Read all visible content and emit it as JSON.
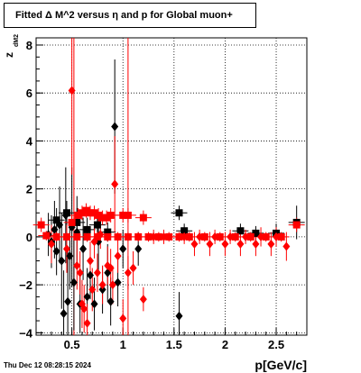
{
  "chart_data": {
    "type": "scatter",
    "title": "Fitted Δ M^2 versus η and p for Global muon+",
    "xlabel": "p[GeV/c]",
    "ylabel": "z",
    "ylabel_subscript": "dM2",
    "xlim": [
      0.15,
      2.8
    ],
    "ylim": [
      -4.1,
      8.3
    ],
    "x_ticks": [
      0.5,
      1,
      1.5,
      2,
      2.5
    ],
    "x_tick_labels": [
      "0.5",
      "1",
      "1.5",
      "2",
      "2.5"
    ],
    "y_ticks": [
      -4,
      -2,
      0,
      2,
      4,
      6,
      8
    ],
    "y_tick_labels": [
      "−4",
      "−2",
      "0",
      "2",
      "4",
      "6",
      "8"
    ],
    "grid": true,
    "timestamp": "Thu Dec 12 08:28:15 2024",
    "series": [
      {
        "color": "#000000",
        "points": [
          {
            "m": "d",
            "x": 0.27,
            "y": 0.1,
            "e": 0.9
          },
          {
            "m": "d",
            "x": 0.3,
            "y": -0.2,
            "e": 1.1
          },
          {
            "m": "d",
            "x": 0.33,
            "y": 0.3,
            "e": 1.2
          },
          {
            "m": "d",
            "x": 0.35,
            "y": -0.6,
            "e": 1.0
          },
          {
            "m": "d",
            "x": 0.38,
            "y": 0.5,
            "e": 1.6
          },
          {
            "m": "d",
            "x": 0.4,
            "y": -1.0,
            "e": 2.0
          },
          {
            "m": "d",
            "x": 0.42,
            "y": -3.2,
            "e": 1.8
          },
          {
            "m": "d",
            "x": 0.44,
            "y": 0.9,
            "e": 2.0
          },
          {
            "m": "d",
            "x": 0.46,
            "y": -2.7,
            "e": 2.2
          },
          {
            "m": "d",
            "x": 0.48,
            "y": -0.8,
            "e": 1.4
          },
          {
            "m": "d",
            "x": 0.5,
            "y": 0.4,
            "e": 2.5
          },
          {
            "m": "d",
            "x": 0.52,
            "y": -1.9,
            "e": 2.0
          },
          {
            "m": "d",
            "x": 0.55,
            "y": 0.2,
            "e": 1.5
          },
          {
            "m": "d",
            "x": 0.58,
            "y": -2.8,
            "e": 1.2
          },
          {
            "m": "d",
            "x": 0.61,
            "y": -0.5,
            "e": 1.3
          },
          {
            "m": "d",
            "x": 0.65,
            "y": -2.5,
            "e": 1.2
          },
          {
            "m": "d",
            "x": 0.68,
            "y": -1.6,
            "e": 1.0
          },
          {
            "m": "d",
            "x": 0.72,
            "y": -2.8,
            "e": 1.1
          },
          {
            "m": "d",
            "x": 0.76,
            "y": -0.2,
            "e": 1.2
          },
          {
            "m": "d",
            "x": 0.8,
            "y": -2.2,
            "e": 1.0
          },
          {
            "m": "d",
            "x": 0.85,
            "y": -1.5,
            "e": 1.2
          },
          {
            "m": "d",
            "x": 0.88,
            "y": -2.7,
            "e": 1.0
          },
          {
            "m": "d",
            "x": 0.92,
            "y": 4.6,
            "e": 2.8
          },
          {
            "m": "d",
            "x": 0.95,
            "y": -1.9,
            "e": 1.0
          },
          {
            "m": "d",
            "x": 1.0,
            "y": -0.5,
            "e": 0.8
          },
          {
            "m": "d",
            "x": 1.15,
            "y": -0.5,
            "e": 0.7
          },
          {
            "m": "d",
            "x": 1.55,
            "y": -3.3,
            "e": 1.0
          },
          {
            "m": "s",
            "x": 1.55,
            "y": 1.0,
            "e": 0.3
          },
          {
            "m": "s",
            "x": 1.6,
            "y": 0.25,
            "e": 0.3
          },
          {
            "m": "s",
            "x": 2.15,
            "y": 0.25,
            "e": 0.3
          },
          {
            "m": "s",
            "x": 2.3,
            "y": 0.15,
            "e": 0.3
          },
          {
            "m": "s",
            "x": 2.5,
            "y": 0.15,
            "e": 0.4
          },
          {
            "m": "s",
            "x": 2.7,
            "y": 0.6,
            "e": 0.7
          },
          {
            "m": "s",
            "x": 0.35,
            "y": 0.7,
            "e": 0.5
          },
          {
            "m": "s",
            "x": 0.45,
            "y": 1.0,
            "e": 0.5
          },
          {
            "m": "s",
            "x": 0.55,
            "y": 0.6,
            "e": 0.6
          },
          {
            "m": "s",
            "x": 0.65,
            "y": 0.3,
            "e": 0.5
          },
          {
            "m": "s",
            "x": 0.75,
            "y": 0.5,
            "e": 0.5
          },
          {
            "m": "s",
            "x": 0.85,
            "y": 0.2,
            "e": 0.4
          }
        ]
      },
      {
        "color": "#ff0000",
        "points": [
          {
            "m": "d",
            "x": 0.5,
            "y": 6.1,
            "e": 3.5
          },
          {
            "m": "d",
            "x": 0.92,
            "y": 2.2,
            "e": 2.0
          },
          {
            "m": "d",
            "x": 0.3,
            "y": -0.3,
            "e": 0.8
          },
          {
            "m": "d",
            "x": 0.45,
            "y": -0.5,
            "e": 1.0
          },
          {
            "m": "d",
            "x": 0.55,
            "y": -1.2,
            "e": 1.0
          },
          {
            "m": "d",
            "x": 0.58,
            "y": -1.5,
            "e": 0.9
          },
          {
            "m": "d",
            "x": 0.6,
            "y": -2.8,
            "e": 1.0
          },
          {
            "m": "d",
            "x": 0.62,
            "y": -3.0,
            "e": 1.0
          },
          {
            "m": "d",
            "x": 0.65,
            "y": -3.6,
            "e": 0.8
          },
          {
            "m": "d",
            "x": 0.68,
            "y": -1.0,
            "e": 0.8
          },
          {
            "m": "d",
            "x": 0.7,
            "y": -2.2,
            "e": 0.9
          },
          {
            "m": "d",
            "x": 0.72,
            "y": -0.2,
            "e": 0.7
          },
          {
            "m": "d",
            "x": 0.75,
            "y": -1.5,
            "e": 0.8
          },
          {
            "m": "d",
            "x": 0.78,
            "y": 0.1,
            "e": 0.6
          },
          {
            "m": "d",
            "x": 0.8,
            "y": -2.0,
            "e": 0.8
          },
          {
            "m": "d",
            "x": 0.85,
            "y": -1.2,
            "e": 0.8
          },
          {
            "m": "d",
            "x": 0.88,
            "y": -1.3,
            "e": 0.8
          },
          {
            "m": "d",
            "x": 0.9,
            "y": -2.0,
            "e": 0.8
          },
          {
            "m": "d",
            "x": 0.95,
            "y": -0.8,
            "e": 0.7
          },
          {
            "m": "d",
            "x": 1.0,
            "y": -3.4,
            "e": 0.8
          },
          {
            "m": "d",
            "x": 1.05,
            "y": -1.5,
            "e": 0.7
          },
          {
            "m": "d",
            "x": 1.1,
            "y": -1.3,
            "e": 0.7
          },
          {
            "m": "d",
            "x": 1.2,
            "y": -2.6,
            "e": 0.5
          },
          {
            "m": "d",
            "x": 1.3,
            "y": 0.0,
            "e": 0.3
          },
          {
            "m": "d",
            "x": 1.4,
            "y": 0.0,
            "e": 0.3
          },
          {
            "m": "d",
            "x": 1.6,
            "y": 0.0,
            "e": 0.3
          },
          {
            "m": "d",
            "x": 1.75,
            "y": 0.0,
            "e": 0.3
          },
          {
            "m": "d",
            "x": 1.9,
            "y": 0.0,
            "e": 0.3
          },
          {
            "m": "d",
            "x": 2.05,
            "y": 0.0,
            "e": 0.3
          },
          {
            "m": "d",
            "x": 2.2,
            "y": 0.0,
            "e": 0.3
          },
          {
            "m": "d",
            "x": 2.35,
            "y": 0.0,
            "e": 0.4
          },
          {
            "m": "d",
            "x": 2.5,
            "y": 0.0,
            "e": 0.4
          },
          {
            "m": "d",
            "x": 1.7,
            "y": -0.3,
            "e": 0.5
          },
          {
            "m": "d",
            "x": 1.85,
            "y": -0.3,
            "e": 0.5
          },
          {
            "m": "d",
            "x": 2.0,
            "y": -0.3,
            "e": 0.5
          },
          {
            "m": "d",
            "x": 2.15,
            "y": -0.3,
            "e": 0.5
          },
          {
            "m": "d",
            "x": 2.3,
            "y": -0.3,
            "e": 0.5
          },
          {
            "m": "d",
            "x": 2.45,
            "y": -0.3,
            "e": 0.5
          },
          {
            "m": "d",
            "x": 2.6,
            "y": -0.4,
            "e": 0.6
          },
          {
            "m": "s",
            "x": 0.2,
            "y": 0.5,
            "e": 0.3
          },
          {
            "m": "s",
            "x": 0.5,
            "y": 0.6,
            "e": 0.3
          },
          {
            "m": "s",
            "x": 0.56,
            "y": 0.9,
            "e": 0.3
          },
          {
            "m": "s",
            "x": 0.6,
            "y": 1.0,
            "e": 0.3
          },
          {
            "m": "s",
            "x": 0.64,
            "y": 1.1,
            "e": 0.3
          },
          {
            "m": "s",
            "x": 0.68,
            "y": 1.0,
            "e": 0.3
          },
          {
            "m": "s",
            "x": 0.72,
            "y": 1.0,
            "e": 0.3
          },
          {
            "m": "s",
            "x": 0.76,
            "y": 0.9,
            "e": 0.3
          },
          {
            "m": "s",
            "x": 0.8,
            "y": 0.8,
            "e": 0.3
          },
          {
            "m": "s",
            "x": 0.84,
            "y": 0.8,
            "e": 0.3
          },
          {
            "m": "s",
            "x": 0.88,
            "y": 0.9,
            "e": 0.3
          },
          {
            "m": "s",
            "x": 1.0,
            "y": 0.9,
            "e": 0.3
          },
          {
            "m": "s",
            "x": 1.05,
            "y": 0.9,
            "e": 0.3
          },
          {
            "m": "s",
            "x": 1.2,
            "y": 0.8,
            "e": 0.3
          },
          {
            "m": "s",
            "x": 2.7,
            "y": 0.5,
            "e": 0.3
          },
          {
            "m": "s",
            "x": 0.25,
            "y": 0.05,
            "e": 0.2
          },
          {
            "m": "s",
            "x": 0.35,
            "y": 0.0,
            "e": 0.2
          },
          {
            "m": "s",
            "x": 0.45,
            "y": 0.0,
            "e": 0.2
          },
          {
            "m": "s",
            "x": 0.55,
            "y": 0.0,
            "e": 0.2
          },
          {
            "m": "s",
            "x": 0.65,
            "y": 0.0,
            "e": 0.2
          },
          {
            "m": "s",
            "x": 0.75,
            "y": 0.0,
            "e": 0.2
          },
          {
            "m": "s",
            "x": 0.85,
            "y": 0.0,
            "e": 0.2
          },
          {
            "m": "s",
            "x": 0.95,
            "y": 0.0,
            "e": 0.2
          },
          {
            "m": "s",
            "x": 1.05,
            "y": 0.0,
            "e": 0.2
          },
          {
            "m": "s",
            "x": 1.15,
            "y": 0.0,
            "e": 0.2
          },
          {
            "m": "s",
            "x": 1.25,
            "y": 0.0,
            "e": 0.2
          },
          {
            "m": "s",
            "x": 1.35,
            "y": 0.0,
            "e": 0.2
          },
          {
            "m": "s",
            "x": 1.45,
            "y": 0.0,
            "e": 0.2
          },
          {
            "m": "s",
            "x": 1.55,
            "y": 0.0,
            "e": 0.2
          },
          {
            "m": "s",
            "x": 1.65,
            "y": 0.0,
            "e": 0.2
          },
          {
            "m": "s",
            "x": 1.8,
            "y": 0.0,
            "e": 0.2
          },
          {
            "m": "s",
            "x": 1.95,
            "y": 0.0,
            "e": 0.2
          },
          {
            "m": "s",
            "x": 2.1,
            "y": 0.0,
            "e": 0.2
          },
          {
            "m": "s",
            "x": 2.25,
            "y": 0.0,
            "e": 0.2
          },
          {
            "m": "s",
            "x": 2.4,
            "y": 0.0,
            "e": 0.2
          },
          {
            "m": "s",
            "x": 2.55,
            "y": 0.0,
            "e": 0.2
          }
        ]
      }
    ],
    "long_red_bars": [
      {
        "x": 0.52,
        "ymin": -4.1,
        "ymax": 8.3
      },
      {
        "x": 1.05,
        "ymin": -4.1,
        "ymax": 8.3
      }
    ]
  }
}
